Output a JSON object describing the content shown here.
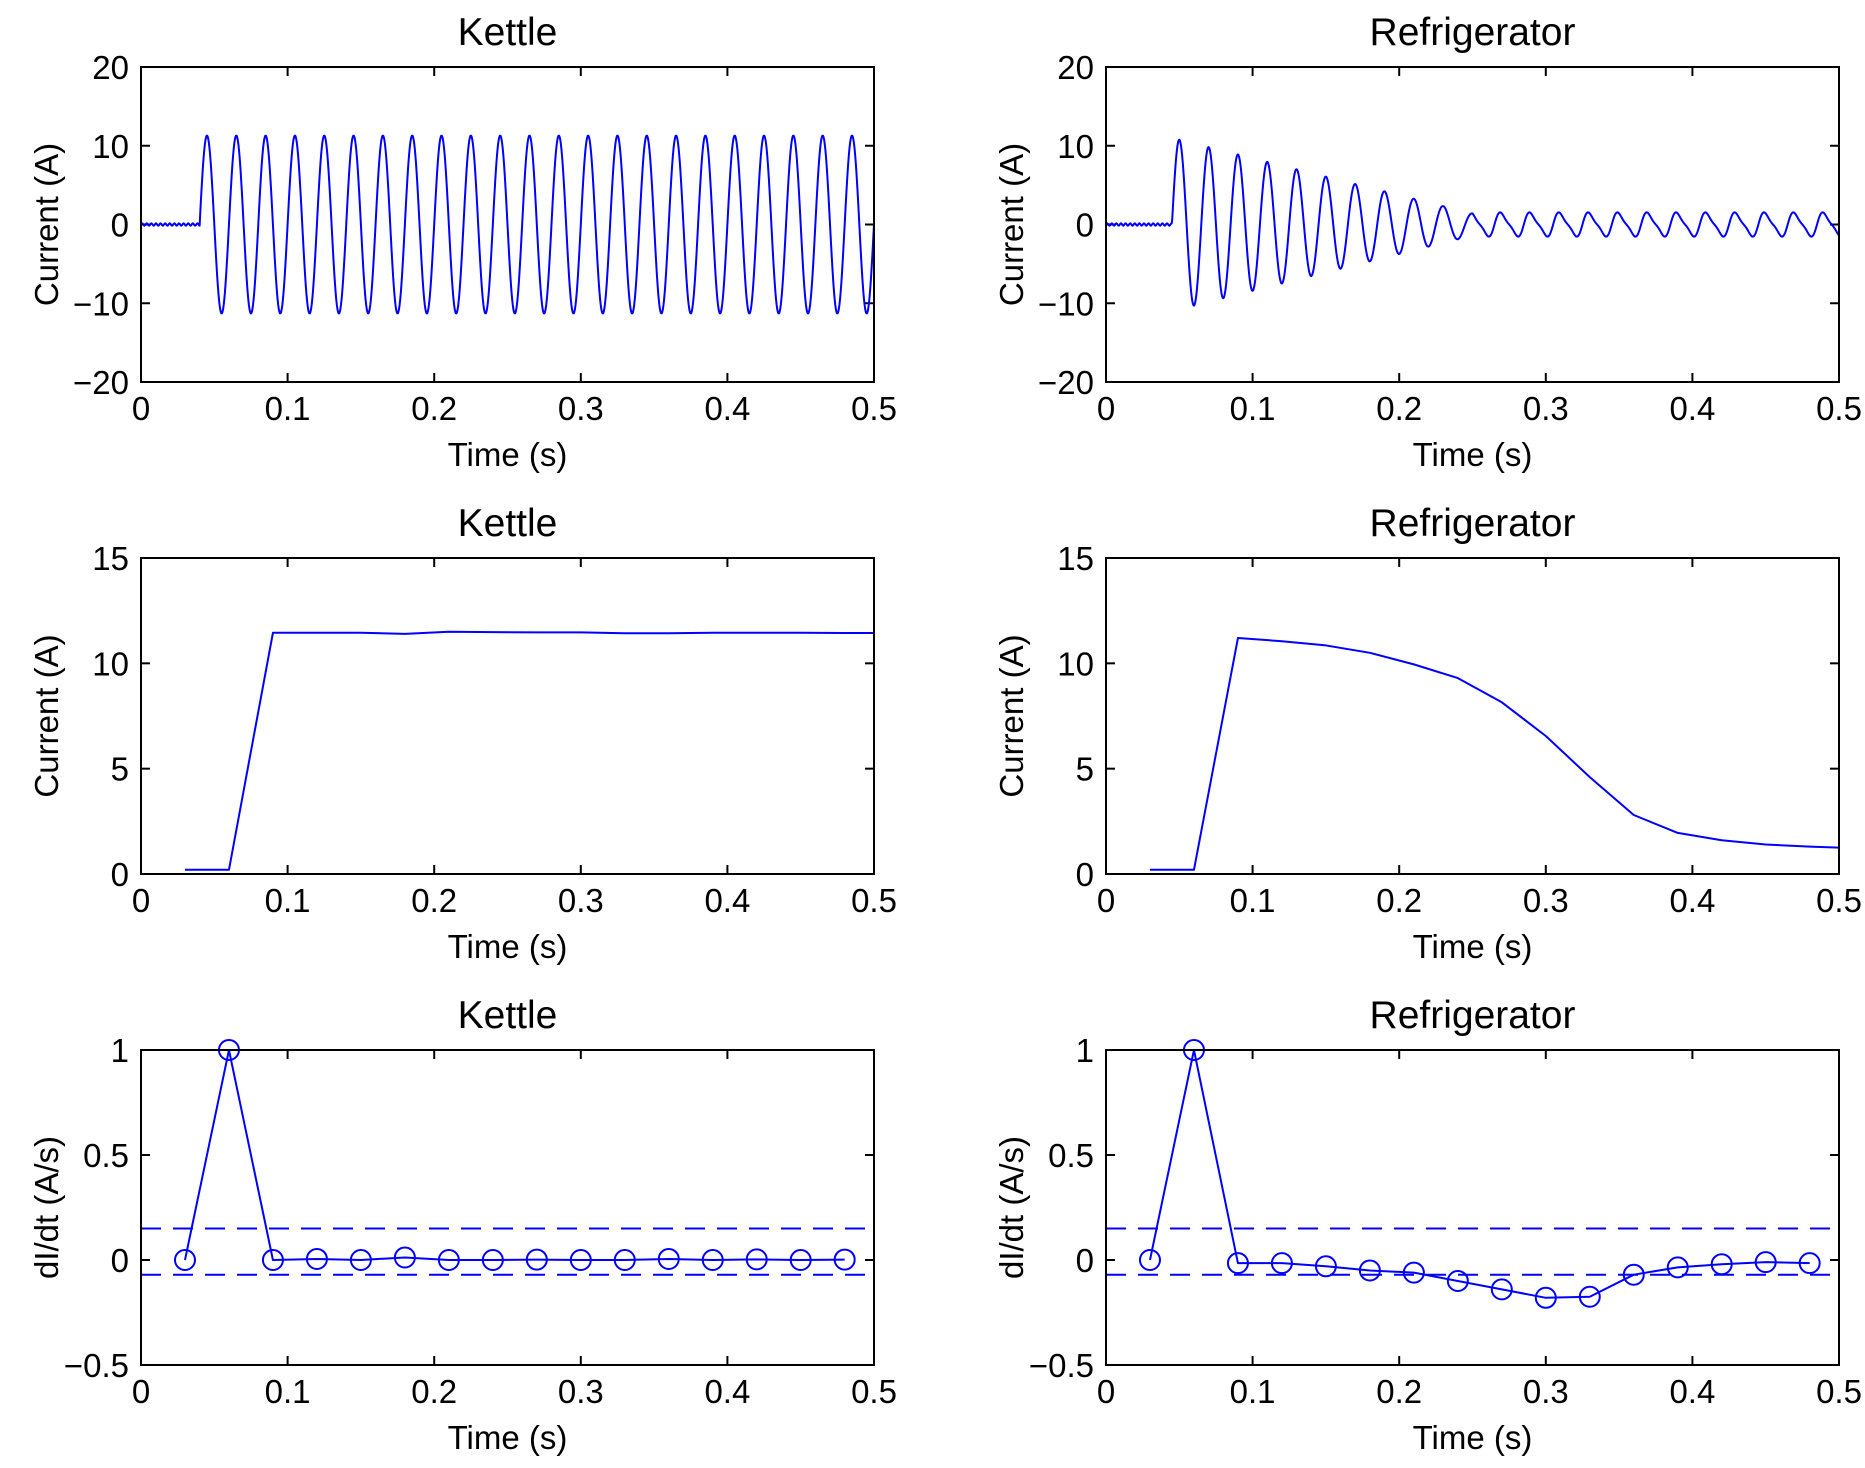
{
  "theme": {
    "line_color": "#0000ff",
    "axis_color": "#000000",
    "background": "#ffffff"
  },
  "chart_data": [
    {
      "id": "kettle-raw",
      "type": "line",
      "title": "Kettle",
      "xlabel": "Time (s)",
      "ylabel": "Current (A)",
      "xlim": [
        0,
        0.5
      ],
      "ylim": [
        -20,
        20
      ],
      "xticks": [
        "0",
        "0.1",
        "0.2",
        "0.3",
        "0.4",
        "0.5"
      ],
      "yticks": [
        "20",
        "10",
        "0",
        "−10",
        "−20"
      ],
      "signal": {
        "onset": 0.04,
        "frequency_hz": 50,
        "amplitude_start": 11.3,
        "amplitude_end": 11.3,
        "decay_end": 0.04,
        "t_end": 0.5
      }
    },
    {
      "id": "refrigerator-raw",
      "type": "line",
      "title": "Refrigerator",
      "xlabel": "Time (s)",
      "ylabel": "Current (A)",
      "xlim": [
        0,
        0.5
      ],
      "ylim": [
        -20,
        20
      ],
      "xticks": [
        "0",
        "0.1",
        "0.2",
        "0.3",
        "0.4",
        "0.5"
      ],
      "yticks": [
        "20",
        "10",
        "0",
        "−10",
        "−20"
      ],
      "signal": {
        "onset": 0.045,
        "frequency_hz": 50,
        "amplitude_start": 11.0,
        "amplitude_end": 1.4,
        "decay_end": 0.25,
        "t_end": 0.5
      }
    },
    {
      "id": "kettle-rms",
      "type": "line",
      "title": "Kettle",
      "xlabel": "Time (s)",
      "ylabel": "Current (A)",
      "xlim": [
        0,
        0.5
      ],
      "ylim": [
        0,
        15
      ],
      "xticks": [
        "0",
        "0.1",
        "0.2",
        "0.3",
        "0.4",
        "0.5"
      ],
      "yticks": [
        "15",
        "10",
        "5",
        "0"
      ],
      "x": [
        0.03,
        0.06,
        0.09,
        0.12,
        0.15,
        0.18,
        0.21,
        0.24,
        0.27,
        0.3,
        0.33,
        0.36,
        0.39,
        0.42,
        0.45,
        0.48,
        0.5
      ],
      "y": [
        0.2,
        0.2,
        11.45,
        11.45,
        11.45,
        11.4,
        11.5,
        11.48,
        11.47,
        11.47,
        11.43,
        11.43,
        11.45,
        11.45,
        11.45,
        11.44,
        11.44
      ]
    },
    {
      "id": "refrigerator-rms",
      "type": "line",
      "title": "Refrigerator",
      "xlabel": "Time (s)",
      "ylabel": "Current (A)",
      "xlim": [
        0,
        0.5
      ],
      "ylim": [
        0,
        15
      ],
      "xticks": [
        "0",
        "0.1",
        "0.2",
        "0.3",
        "0.4",
        "0.5"
      ],
      "yticks": [
        "15",
        "10",
        "5",
        "0"
      ],
      "x": [
        0.03,
        0.06,
        0.09,
        0.12,
        0.15,
        0.18,
        0.21,
        0.24,
        0.27,
        0.3,
        0.33,
        0.36,
        0.39,
        0.42,
        0.45,
        0.48,
        0.5
      ],
      "y": [
        0.2,
        0.2,
        11.2,
        11.05,
        10.85,
        10.5,
        9.95,
        9.3,
        8.15,
        6.55,
        4.6,
        2.8,
        1.95,
        1.6,
        1.4,
        1.3,
        1.25
      ]
    },
    {
      "id": "kettle-didt",
      "type": "line",
      "title": "Kettle",
      "xlabel": "Time (s)",
      "ylabel": "dI/dt (A/s)",
      "xlim": [
        0,
        0.5
      ],
      "ylim": [
        -0.5,
        1
      ],
      "xticks": [
        "0",
        "0.1",
        "0.2",
        "0.3",
        "0.4",
        "0.5"
      ],
      "yticks": [
        "1",
        "0.5",
        "0",
        "−0.5"
      ],
      "markers": true,
      "x": [
        0.03,
        0.06,
        0.09,
        0.12,
        0.15,
        0.18,
        0.21,
        0.24,
        0.27,
        0.3,
        0.33,
        0.36,
        0.39,
        0.42,
        0.45,
        0.48
      ],
      "y": [
        0.0,
        1.0,
        0.0,
        0.005,
        0.0,
        0.012,
        0.0,
        0.0,
        0.002,
        0.0,
        0.0,
        0.005,
        0.0,
        0.003,
        0.0,
        0.002
      ],
      "thresholds": [
        0.15,
        -0.07
      ]
    },
    {
      "id": "refrigerator-didt",
      "type": "line",
      "title": "Refrigerator",
      "xlabel": "Time (s)",
      "ylabel": "dI/dt (A/s)",
      "xlim": [
        0,
        0.5
      ],
      "ylim": [
        -0.5,
        1
      ],
      "xticks": [
        "0",
        "0.1",
        "0.2",
        "0.3",
        "0.4",
        "0.5"
      ],
      "yticks": [
        "1",
        "0.5",
        "0",
        "−0.5"
      ],
      "markers": true,
      "x": [
        0.03,
        0.06,
        0.09,
        0.12,
        0.15,
        0.18,
        0.21,
        0.24,
        0.27,
        0.3,
        0.33,
        0.36,
        0.39,
        0.42,
        0.45,
        0.48
      ],
      "y": [
        0.0,
        1.0,
        -0.015,
        -0.015,
        -0.03,
        -0.05,
        -0.06,
        -0.1,
        -0.14,
        -0.18,
        -0.175,
        -0.07,
        -0.035,
        -0.02,
        -0.01,
        -0.015
      ],
      "thresholds": [
        0.15,
        -0.07
      ]
    }
  ]
}
